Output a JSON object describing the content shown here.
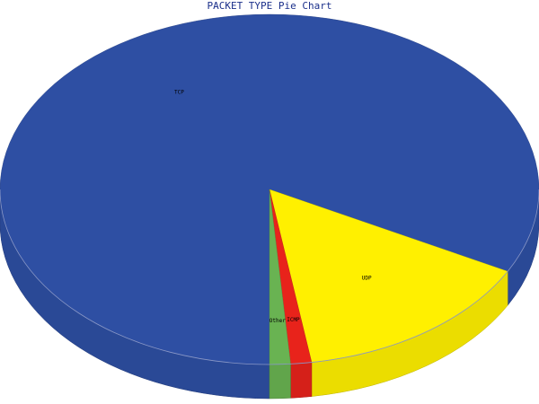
{
  "chart_data": {
    "type": "pie",
    "title": "PACKET TYPE Pie Chart",
    "three_d": true,
    "slices": [
      {
        "label": "TCP",
        "value": 0.8275,
        "color": "#2e4fa3"
      },
      {
        "label": "UDP",
        "value": 0.1475,
        "color": "#fff000"
      },
      {
        "label": "ICMP",
        "value": 0.0125,
        "color": "#e8231b"
      },
      {
        "label": "Other",
        "value": 0.0125,
        "color": "#69b352"
      }
    ]
  }
}
